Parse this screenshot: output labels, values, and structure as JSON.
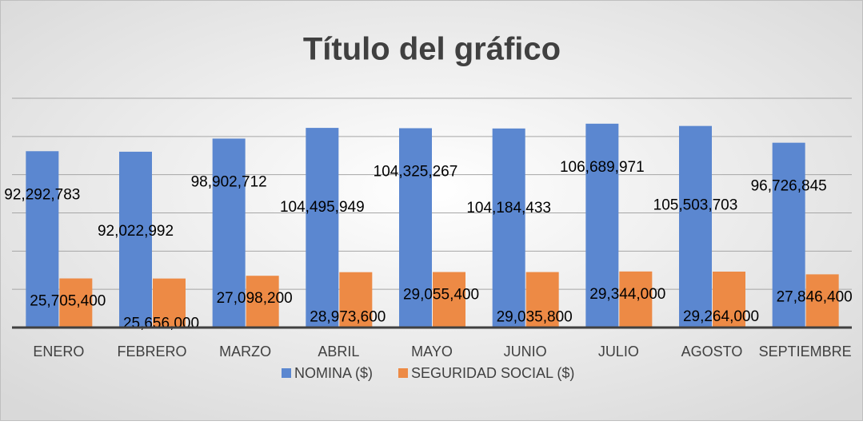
{
  "chart_data": {
    "type": "bar",
    "title": "Título del gráfico",
    "categories": [
      "ENERO",
      "FEBRERO",
      "MARZO",
      "ABRIL",
      "MAYO",
      "JUNIO",
      "JULIO",
      "AGOSTO",
      "SEPTIEMBRE"
    ],
    "series": [
      {
        "name": "NOMINA ($)",
        "color": "#5b87d0",
        "values": [
          92292783,
          92022992,
          98902712,
          104495949,
          104325267,
          104184433,
          106689971,
          105503703,
          96726845
        ],
        "value_labels": [
          "92,292,783",
          "92,022,992",
          "98,902,712",
          "104,495,949",
          "104,325,267",
          "104,184,433",
          "106,689,971",
          "105,503,703",
          "96,726,845"
        ]
      },
      {
        "name": "SEGURIDAD SOCIAL ($)",
        "color": "#ed8a45",
        "values": [
          25705400,
          25656000,
          27098200,
          28973600,
          29055400,
          29035800,
          29344000,
          29264000,
          27846400
        ],
        "value_labels": [
          "25,705,400",
          "25,656,000",
          "27,098,200",
          "28,973,600",
          "29,055,400",
          "29,035,800",
          "29,344,000",
          "29,264,000",
          "27,846,400"
        ]
      }
    ],
    "ylim": [
      0,
      120000000
    ],
    "yticks": [
      0,
      20000000,
      40000000,
      60000000,
      80000000,
      100000000,
      120000000
    ],
    "grid": true,
    "legend": "bottom"
  }
}
